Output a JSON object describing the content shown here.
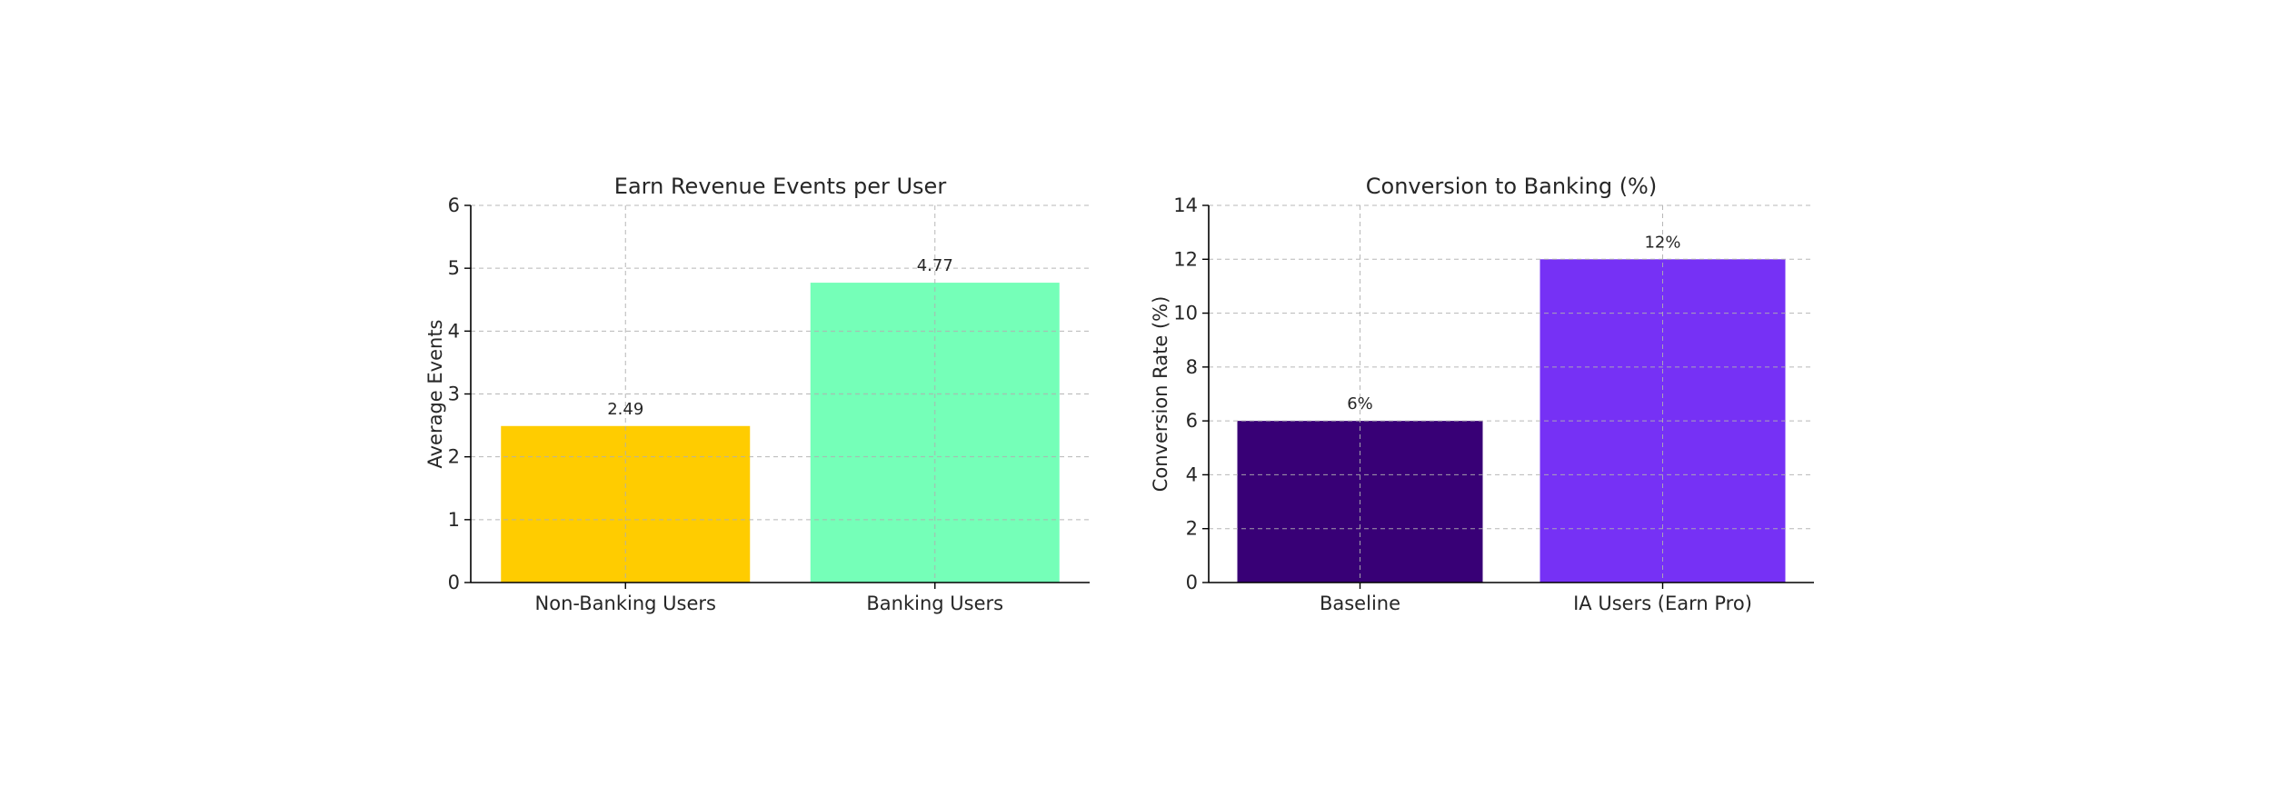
{
  "chart_data": [
    {
      "type": "bar",
      "title": "Earn Revenue Events per User",
      "xlabel": "",
      "ylabel": "Average Events",
      "categories": [
        "Non-Banking Users",
        "Banking Users"
      ],
      "values": [
        2.49,
        4.77
      ],
      "data_labels": [
        "2.49",
        "4.77"
      ],
      "colors": [
        "#FFCC00",
        "#75FFB8"
      ],
      "ylim": [
        0,
        6
      ],
      "yticks": [
        0,
        1,
        2,
        3,
        4,
        5,
        6
      ],
      "grid": true,
      "legend": "none"
    },
    {
      "type": "bar",
      "title": "Conversion to Banking (%)",
      "xlabel": "",
      "ylabel": "Conversion Rate (%)",
      "categories": [
        "Baseline",
        "IA Users (Earn Pro)"
      ],
      "values": [
        6,
        12
      ],
      "data_labels": [
        "6%",
        "12%"
      ],
      "colors": [
        "#380076",
        "#7631F5"
      ],
      "ylim": [
        0,
        14
      ],
      "yticks": [
        0,
        2,
        4,
        6,
        8,
        10,
        12,
        14
      ],
      "grid": true,
      "legend": "none"
    }
  ]
}
